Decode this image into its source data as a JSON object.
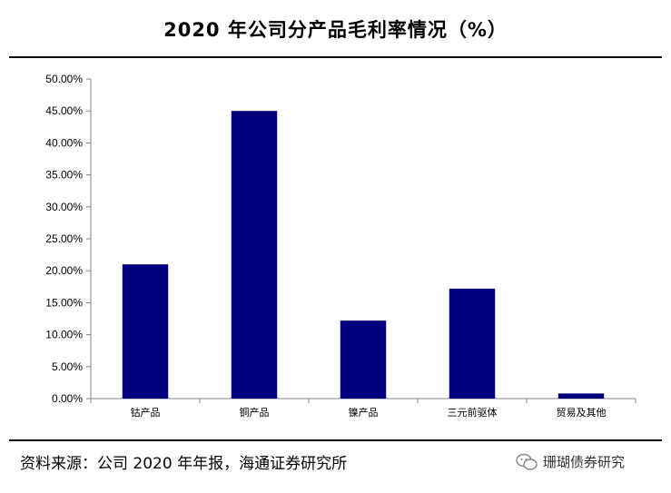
{
  "title": "2020 年公司分产品毛利率情况（%）",
  "footer": {
    "source": "资料来源：公司 2020 年年报，海通证券研究所",
    "watermark": "珊瑚债券研究"
  },
  "colors": {
    "bar": "#00007F",
    "axis": "#808080",
    "text": "#000000"
  },
  "chart_data": {
    "type": "bar",
    "categories": [
      "钴产品",
      "铜产品",
      "镍产品",
      "三元前驱体",
      "贸易及其他"
    ],
    "values": [
      21.0,
      45.0,
      12.2,
      17.2,
      0.8
    ],
    "ylim": [
      0,
      50
    ],
    "yticks": [
      0,
      5,
      10,
      15,
      20,
      25,
      30,
      35,
      40,
      45,
      50
    ],
    "ytick_labels": [
      "0.00%",
      "5.00%",
      "10.00%",
      "15.00%",
      "20.00%",
      "25.00%",
      "30.00%",
      "35.00%",
      "40.00%",
      "45.00%",
      "50.00%"
    ],
    "xlabel": "",
    "ylabel": "",
    "grid": false,
    "legend": "none"
  }
}
